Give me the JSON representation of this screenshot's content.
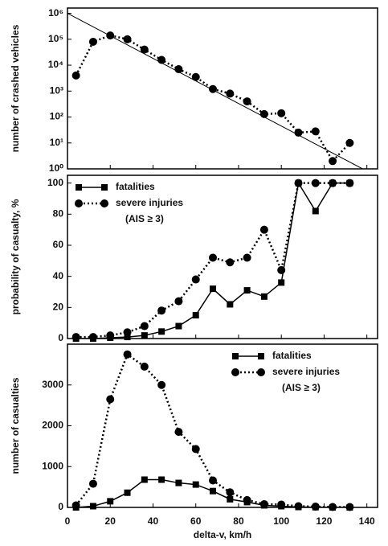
{
  "chart_data": [
    {
      "type": "line",
      "y_label": "number of crashed vehicles",
      "log_y": true,
      "x": [
        4,
        12,
        20,
        28,
        36,
        44,
        52,
        60,
        68,
        76,
        84,
        92,
        100,
        108,
        116,
        124,
        132
      ],
      "values": [
        4000,
        80000,
        140000,
        100000,
        40000,
        16000,
        7000,
        3500,
        1200,
        800,
        400,
        130,
        140,
        25,
        28,
        2,
        10
      ],
      "marker": "circle",
      "line_style": "dotted",
      "color": "#000000",
      "trend_line": {
        "x": [
          0,
          138
        ],
        "values": [
          1000000,
          1
        ]
      },
      "xlim": [
        0,
        145
      ],
      "xticks": [
        0,
        20,
        40,
        60,
        80,
        100,
        120,
        140
      ],
      "ylim": [
        1,
        1600000
      ],
      "yticks": [
        {
          "value": 1,
          "label": "10⁰"
        },
        {
          "value": 10,
          "label": "10¹"
        },
        {
          "value": 100,
          "label": "10²"
        },
        {
          "value": 1000,
          "label": "10³"
        },
        {
          "value": 10000,
          "label": "10⁴"
        },
        {
          "value": 100000,
          "label": "10⁵"
        },
        {
          "value": 1000000,
          "label": "10⁶"
        }
      ]
    },
    {
      "type": "line",
      "y_label": "probability of casualty, %",
      "legend": "upper left",
      "legend_note": "(AIS ≥ 3)",
      "x": [
        4,
        12,
        20,
        28,
        36,
        44,
        52,
        60,
        68,
        76,
        84,
        92,
        100,
        108,
        116,
        124,
        132
      ],
      "series": [
        {
          "name": "fatalities",
          "color": "#000000",
          "marker": "square",
          "line_style": "solid",
          "values": [
            0,
            0,
            0.5,
            1,
            2,
            4.5,
            8,
            15,
            32,
            22,
            31,
            27,
            36,
            100,
            82,
            100,
            100
          ]
        },
        {
          "name": "severe injuries",
          "color": "#000000",
          "marker": "circle",
          "line_style": "dotted",
          "values": [
            1,
            1,
            2,
            4,
            8,
            18,
            24,
            38,
            52,
            49,
            52,
            70,
            44,
            100,
            100,
            100,
            100
          ]
        }
      ],
      "xlim": [
        0,
        145
      ],
      "xticks": [
        0,
        20,
        40,
        60,
        80,
        100,
        120,
        140
      ],
      "ylim": [
        0,
        105
      ],
      "yticks": [
        0,
        20,
        40,
        60,
        80,
        100
      ]
    },
    {
      "type": "line",
      "y_label": "number of casualties",
      "x_label": "delta-v, km/h",
      "legend": "upper right",
      "legend_note": "(AIS ≥ 3)",
      "x": [
        4,
        12,
        20,
        28,
        36,
        44,
        52,
        60,
        68,
        76,
        84,
        92,
        100,
        108,
        116,
        124,
        132
      ],
      "series": [
        {
          "name": "fatalities",
          "color": "#000000",
          "marker": "square",
          "line_style": "solid",
          "values": [
            0,
            30,
            150,
            360,
            680,
            680,
            600,
            560,
            400,
            200,
            130,
            50,
            30,
            10,
            5,
            0,
            0
          ]
        },
        {
          "name": "severe injuries",
          "color": "#000000",
          "marker": "circle",
          "line_style": "dotted",
          "values": [
            50,
            580,
            2650,
            3750,
            3450,
            3000,
            1850,
            1430,
            660,
            370,
            180,
            80,
            70,
            30,
            20,
            10,
            10
          ]
        }
      ],
      "xlim": [
        0,
        145
      ],
      "xticks": [
        0,
        20,
        40,
        60,
        80,
        100,
        120,
        140
      ],
      "show_x_tick_labels": true,
      "ylim": [
        0,
        4000
      ],
      "yticks": [
        0,
        1000,
        2000,
        3000
      ]
    }
  ]
}
